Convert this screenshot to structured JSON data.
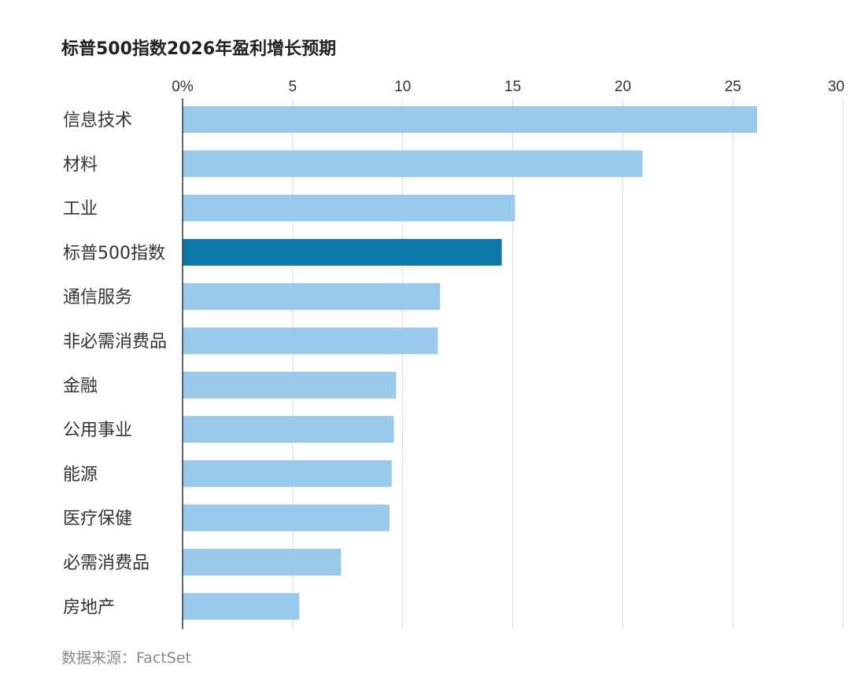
{
  "title": "标普500指数2026年盈利增长预期",
  "source": "数据来源：FactSet",
  "colors": {
    "bar": "#99caec",
    "highlight": "#0c78a9",
    "grid": "#dddddd",
    "axis": "#333333",
    "label": "#333333"
  },
  "chart_data": {
    "type": "bar",
    "orientation": "horizontal",
    "categories": [
      "信息技术",
      "材料",
      "工业",
      "标普500指数",
      "通信服务",
      "非必需消费品",
      "金融",
      "公用事业",
      "能源",
      "医疗保健",
      "必需消费品",
      "房地产"
    ],
    "values": [
      26.1,
      20.9,
      15.1,
      14.5,
      11.7,
      11.6,
      9.7,
      9.6,
      9.5,
      9.4,
      7.2,
      5.3
    ],
    "highlight_category": "标普500指数",
    "xlim": [
      0,
      30
    ],
    "xticks": [
      0,
      5,
      10,
      15,
      20,
      25,
      30
    ],
    "xtick_labels": [
      "0%",
      "5",
      "10",
      "15",
      "20",
      "25",
      "30"
    ],
    "xaxis_position": "top",
    "grid": true
  }
}
